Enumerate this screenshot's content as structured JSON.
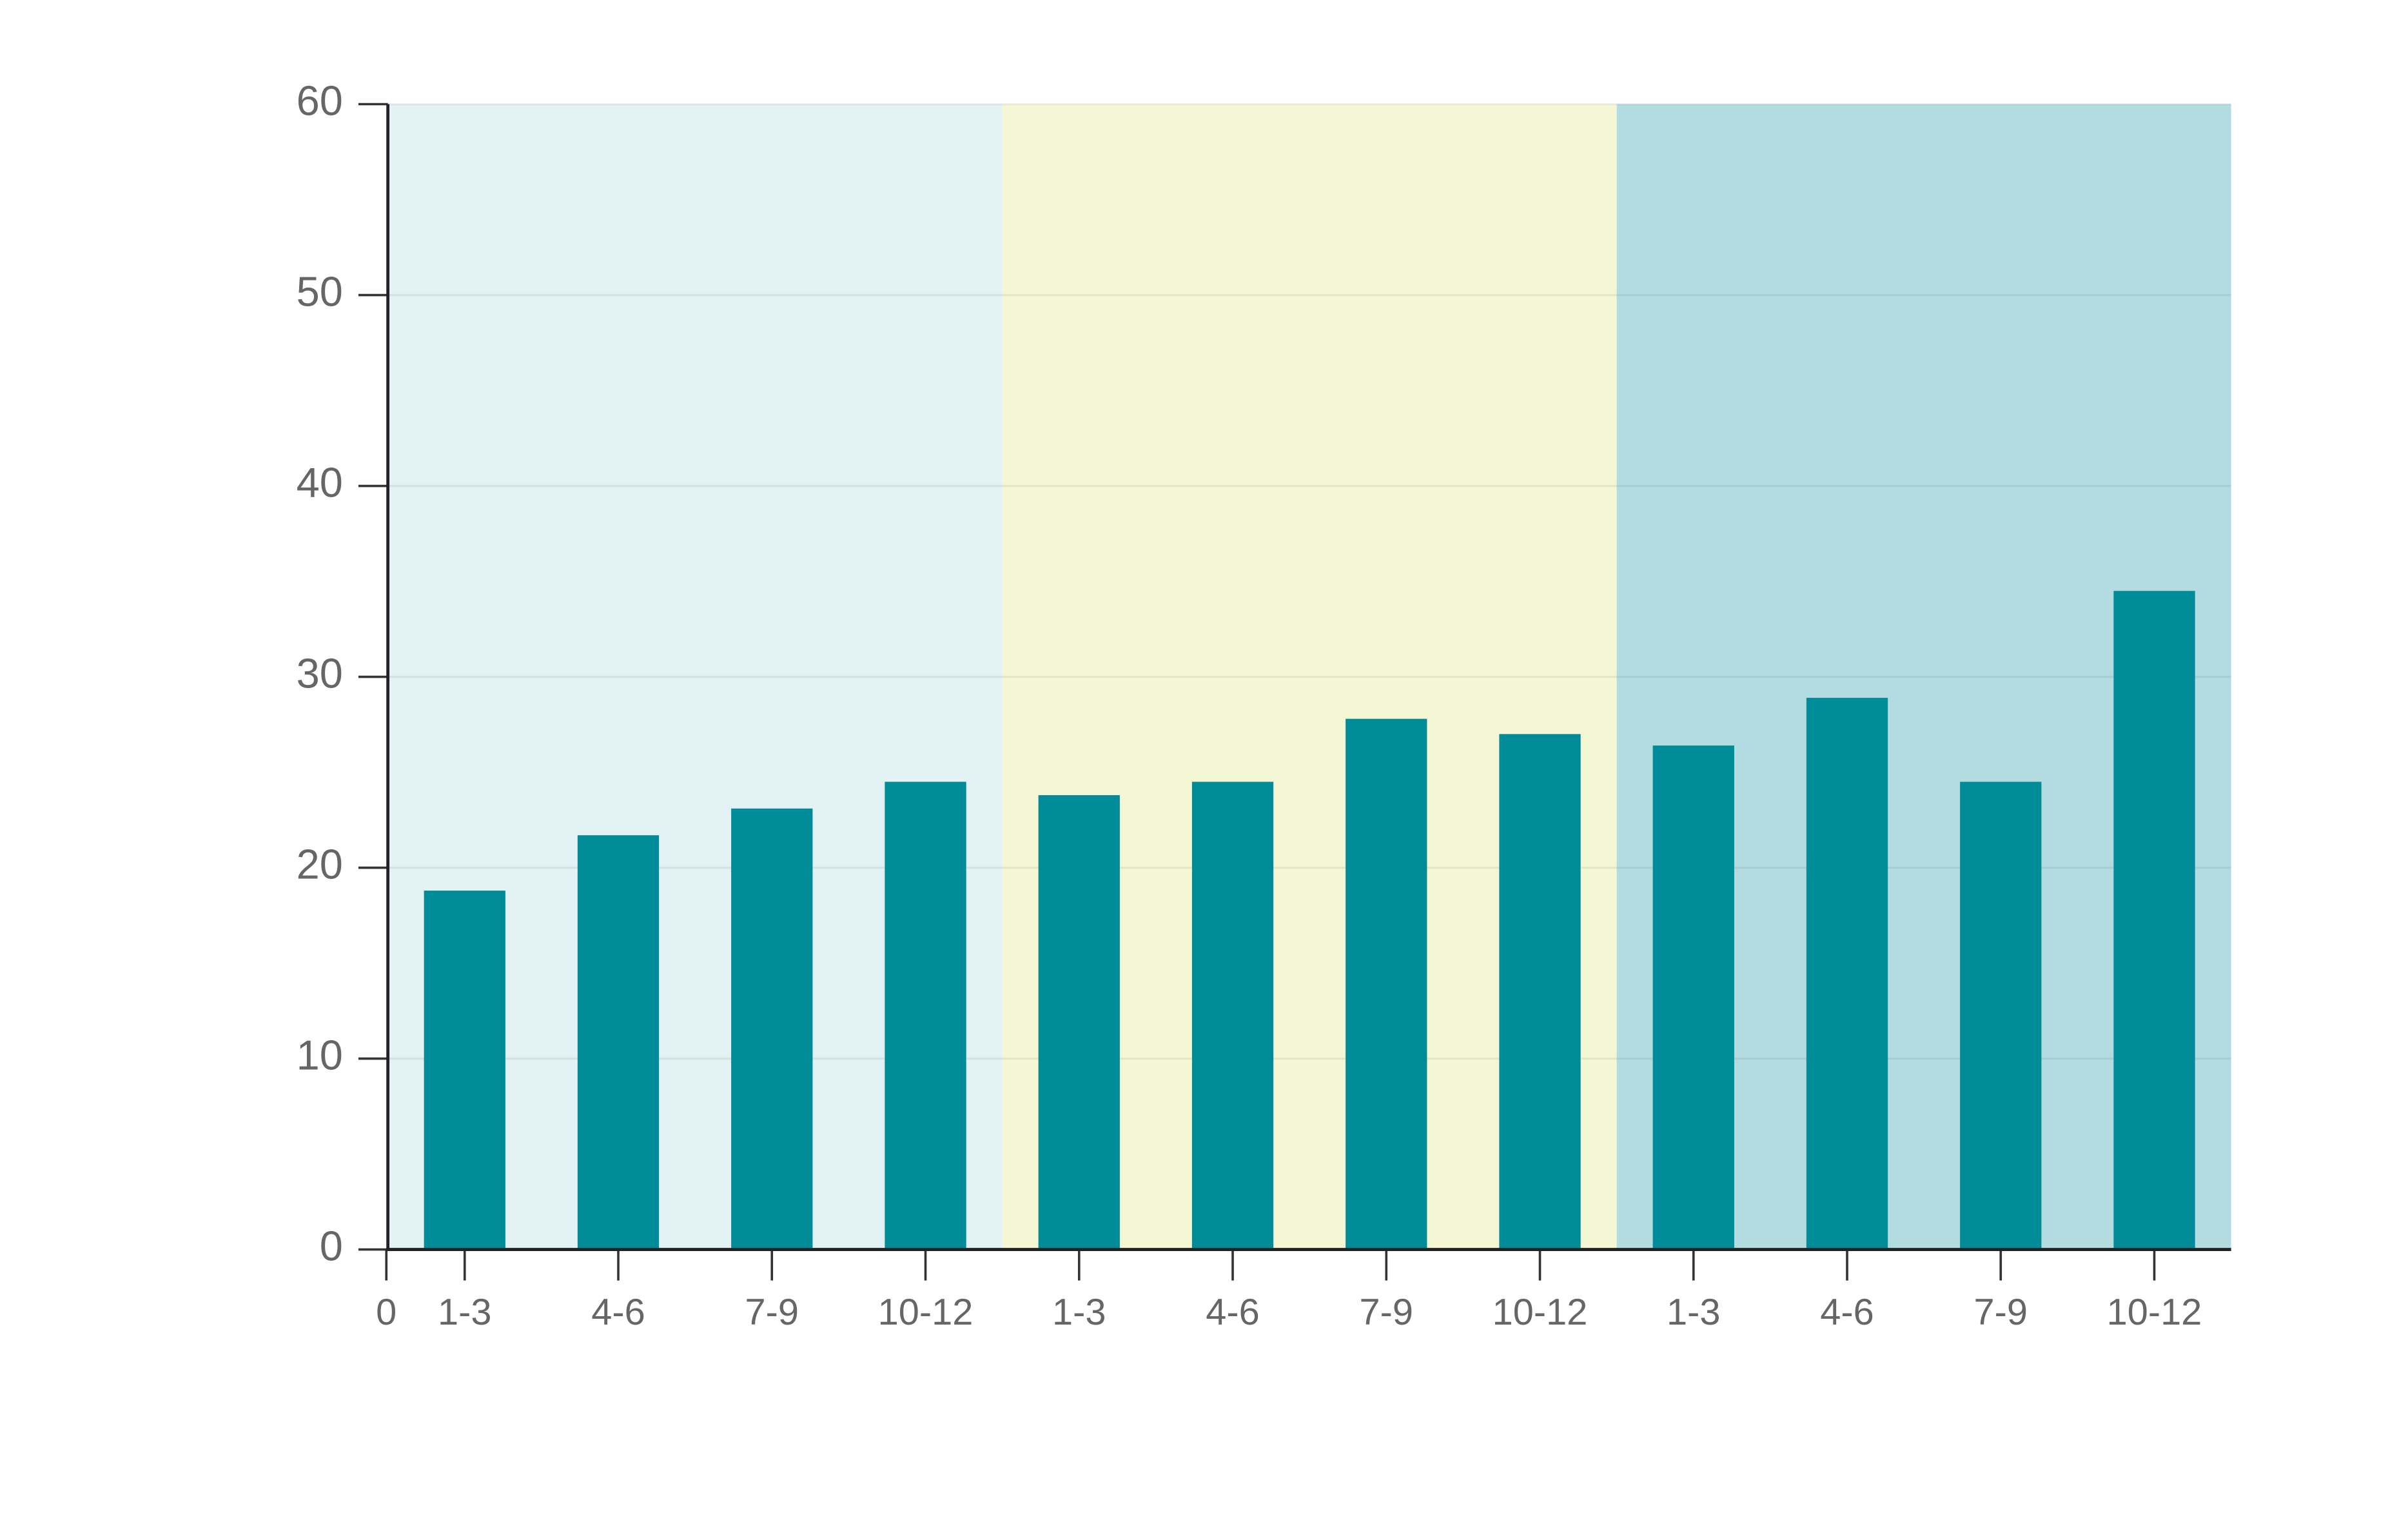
{
  "chart_data": {
    "type": "bar",
    "categories": [
      "1-3",
      "4-6",
      "7-9",
      "10-12",
      "1-3",
      "4-6",
      "7-9",
      "10-12",
      "1-3",
      "4-6",
      "7-9",
      "10-12"
    ],
    "values": [
      18.8,
      21.7,
      23.1,
      24.5,
      23.8,
      24.5,
      27.8,
      27.0,
      26.4,
      28.9,
      24.5,
      34.5
    ],
    "color": "#008b98",
    "band_colors": [
      "#e3f2f4",
      "#f3f7d4",
      "#b3dce1"
    ],
    "ylim": [
      0,
      60
    ],
    "yticks": [
      0,
      10,
      20,
      30,
      40,
      50,
      60
    ],
    "x_origin_tick": 0,
    "grid": true
  }
}
